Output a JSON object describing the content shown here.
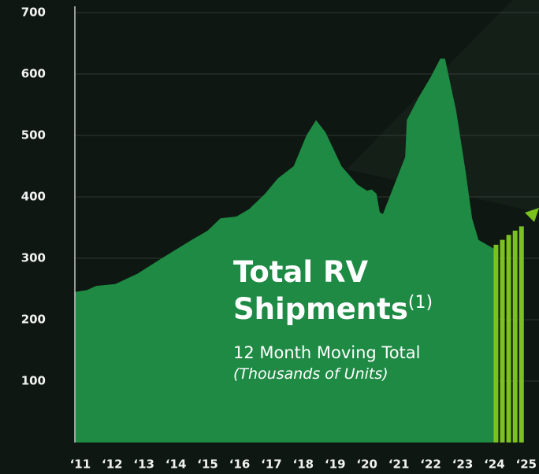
{
  "chart_data": {
    "type": "area",
    "title_lines": [
      "Total RV",
      "Shipments"
    ],
    "title_note": "(1)",
    "subtitle": "12 Month Moving Total",
    "unit_note": "(Thousands of Units)",
    "xlim": [
      2010.83,
      2025.4
    ],
    "xticks": [
      {
        "value": 2011,
        "label": "‘11"
      },
      {
        "value": 2012,
        "label": "‘12"
      },
      {
        "value": 2013,
        "label": "‘13"
      },
      {
        "value": 2014,
        "label": "‘14"
      },
      {
        "value": 2015,
        "label": "‘15"
      },
      {
        "value": 2016,
        "label": "‘16"
      },
      {
        "value": 2017,
        "label": "‘17"
      },
      {
        "value": 2018,
        "label": "‘18"
      },
      {
        "value": 2019,
        "label": "‘19"
      },
      {
        "value": 2020,
        "label": "‘20"
      },
      {
        "value": 2021,
        "label": "‘21"
      },
      {
        "value": 2022,
        "label": "‘22"
      },
      {
        "value": 2023,
        "label": "‘23"
      },
      {
        "value": 2024,
        "label": "‘24"
      },
      {
        "value": 2025,
        "label": "‘25"
      }
    ],
    "ylim": [
      0,
      700
    ],
    "yticks": [
      100,
      200,
      300,
      400,
      500,
      600,
      700
    ],
    "grid": true,
    "series": [
      {
        "type": "area",
        "color": "#1e8a44",
        "x": [
          2010.83,
          2011.2,
          2011.5,
          2012.1,
          2012.8,
          2013.5,
          2014.5,
          2015.0,
          2015.4,
          2015.9,
          2016.3,
          2016.8,
          2017.2,
          2017.7,
          2018.1,
          2018.4,
          2018.7,
          2019.2,
          2019.7,
          2020.0,
          2020.15,
          2020.3,
          2020.4,
          2020.5,
          2021.2,
          2021.25,
          2021.6,
          2022.0,
          2022.3,
          2022.45,
          2022.8,
          2023.1,
          2023.3,
          2023.5,
          2024.0,
          2024.1
        ],
        "values": [
          245,
          248,
          255,
          258,
          275,
          298,
          330,
          345,
          365,
          368,
          380,
          405,
          430,
          450,
          500,
          525,
          505,
          450,
          420,
          410,
          412,
          405,
          375,
          372,
          465,
          525,
          560,
          595,
          625,
          625,
          540,
          440,
          365,
          330,
          315,
          318
        ]
      },
      {
        "type": "bar",
        "color": "#7cc21e",
        "x": [
          2024.05,
          2024.25,
          2024.45,
          2024.65,
          2024.85
        ],
        "values": [
          322,
          330,
          338,
          345,
          352
        ]
      }
    ]
  }
}
